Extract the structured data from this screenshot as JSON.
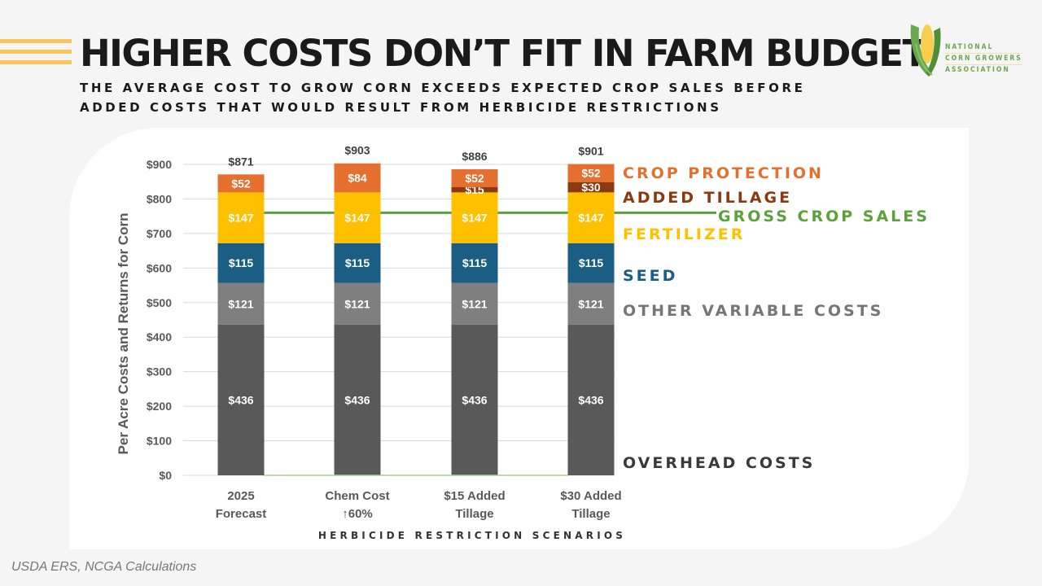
{
  "header": {
    "title": "HIGHER COSTS DON’T FIT IN FARM BUDGET",
    "subtitle_line1": "THE AVERAGE COST TO GROW CORN EXCEEDS EXPECTED CROP SALES BEFORE",
    "subtitle_line2": "ADDED COSTS THAT WOULD RESULT FROM HERBICIDE RESTRICTIONS"
  },
  "logo": {
    "line1": "NATIONAL",
    "line2": "CORN GROWERS",
    "line3": "ASSOCIATION"
  },
  "source": "USDA ERS, NCGA Calculations",
  "colors": {
    "overhead": "#595959",
    "other_variable": "#7f7f7f",
    "seed": "#1b5e84",
    "fertilizer": "#ffc000",
    "added_tillage": "#8b3a0f",
    "crop_protection": "#e46f2e",
    "gross_crop_sales": "#5aa33a"
  },
  "chart_data": {
    "type": "bar",
    "stacked": true,
    "title": "HIGHER COSTS DON’T FIT IN FARM BUDGET",
    "xlabel": "HERBICIDE RESTRICTION SCENARIOS",
    "ylabel": "Per Acre Costs and Returns for Corn",
    "ylim": [
      0,
      900
    ],
    "yticks": [
      0,
      100,
      200,
      300,
      400,
      500,
      600,
      700,
      800,
      900
    ],
    "ytick_labels": [
      "$0",
      "$100",
      "$200",
      "$300",
      "$400",
      "$500",
      "$600",
      "$700",
      "$800",
      "$900"
    ],
    "grid": true,
    "legend_placement": "right",
    "categories": [
      [
        "2025",
        "Forecast"
      ],
      [
        "Chem Cost",
        "↑60%"
      ],
      [
        "$15 Added",
        "Tillage"
      ],
      [
        "$30 Added",
        "Tillage"
      ]
    ],
    "series": [
      {
        "key": "overhead",
        "name": "OVERHEAD COSTS",
        "values": [
          436,
          436,
          436,
          436
        ],
        "labels": [
          "$436",
          "$436",
          "$436",
          "$436"
        ]
      },
      {
        "key": "other_variable",
        "name": "OTHER VARIABLE COSTS",
        "values": [
          121,
          121,
          121,
          121
        ],
        "labels": [
          "$121",
          "$121",
          "$121",
          "$121"
        ]
      },
      {
        "key": "seed",
        "name": "SEED",
        "values": [
          115,
          115,
          115,
          115
        ],
        "labels": [
          "$115",
          "$115",
          "$115",
          "$115"
        ]
      },
      {
        "key": "fertilizer",
        "name": "FERTILIZER",
        "values": [
          147,
          147,
          147,
          147
        ],
        "labels": [
          "$147",
          "$147",
          "$147",
          "$147"
        ]
      },
      {
        "key": "added_tillage",
        "name": "ADDED TILLAGE",
        "values": [
          0,
          0,
          15,
          30
        ],
        "labels": [
          "",
          "",
          "$15",
          "$30"
        ]
      },
      {
        "key": "crop_protection",
        "name": "CROP PROTECTION",
        "values": [
          52,
          84,
          52,
          52
        ],
        "labels": [
          "$52",
          "$84",
          "$52",
          "$52"
        ]
      }
    ],
    "totals": [
      871,
      903,
      886,
      901
    ],
    "total_labels": [
      "$871",
      "$903",
      "$886",
      "$901"
    ],
    "reference_line": {
      "name": "GROSS CROP SALES",
      "value": 760
    }
  }
}
